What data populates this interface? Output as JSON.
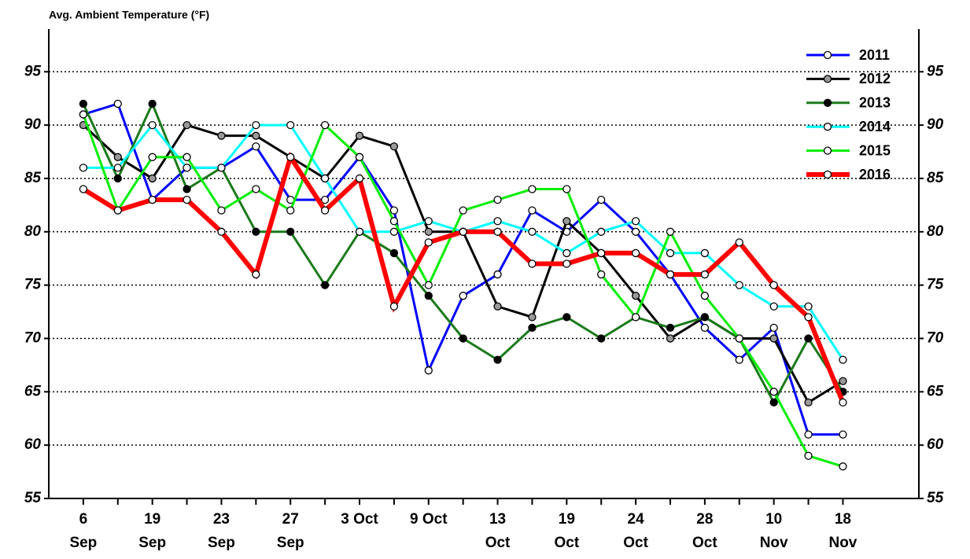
{
  "chart_data": {
    "type": "line",
    "title": "Avg. Ambient Temperature (°F)",
    "categories": [
      "6 Sep",
      null,
      "19 Sep",
      null,
      "23 Sep",
      null,
      "27 Sep",
      null,
      "3 Oct",
      null,
      "9 Oct",
      null,
      "13 Oct",
      null,
      "19 Oct",
      null,
      "24 Oct",
      null,
      "28 Oct",
      null,
      "10 Nov",
      null,
      "18 Nov"
    ],
    "series": [
      {
        "name": "2011",
        "color": "#0000ff",
        "marker_fill": "#ffffff",
        "line_width": 3,
        "values": [
          91,
          92,
          83,
          86,
          86,
          88,
          83,
          83,
          87,
          82,
          67,
          74,
          76,
          82,
          80,
          83,
          80,
          76,
          71,
          68,
          71,
          61,
          61
        ]
      },
      {
        "name": "2012",
        "color": "#000000",
        "marker_fill": "#999999",
        "line_width": 3,
        "values": [
          90,
          87,
          85,
          90,
          89,
          89,
          87,
          85,
          89,
          88,
          80,
          80,
          73,
          72,
          81,
          78,
          74,
          70,
          72,
          70,
          70,
          64,
          66
        ]
      },
      {
        "name": "2013",
        "color": "#1a7a1a",
        "marker_fill": "#000000",
        "line_width": 3,
        "values": [
          92,
          85,
          92,
          84,
          86,
          80,
          80,
          75,
          80,
          78,
          74,
          70,
          68,
          71,
          72,
          70,
          72,
          71,
          72,
          70,
          64,
          70,
          65
        ]
      },
      {
        "name": "2014",
        "color": "#00ffff",
        "marker_fill": "#ffffff",
        "line_width": 3,
        "values": [
          86,
          86,
          90,
          86,
          86,
          90,
          90,
          85,
          80,
          80,
          81,
          80,
          81,
          80,
          78,
          80,
          81,
          78,
          78,
          75,
          73,
          73,
          68
        ]
      },
      {
        "name": "2015",
        "color": "#00ee00",
        "marker_fill": "#ffffff",
        "line_width": 3,
        "values": [
          91,
          82,
          87,
          87,
          82,
          84,
          82,
          90,
          87,
          81,
          75,
          82,
          83,
          84,
          84,
          76,
          72,
          80,
          74,
          70,
          65,
          59,
          58
        ]
      },
      {
        "name": "2016",
        "color": "#ff0000",
        "marker_fill": "#ffffff",
        "line_width": 6,
        "values": [
          84,
          82,
          83,
          83,
          80,
          76,
          87,
          82,
          85,
          73,
          79,
          80,
          80,
          77,
          77,
          78,
          78,
          76,
          76,
          79,
          75,
          72,
          64
        ]
      }
    ],
    "ylim": [
      55,
      99
    ],
    "yticks": [
      55,
      60,
      65,
      70,
      75,
      80,
      85,
      90,
      95
    ],
    "y2lim": [
      55,
      99
    ],
    "y2ticks": [
      55,
      60,
      65,
      70,
      75,
      80,
      85,
      90,
      95
    ],
    "grid": true,
    "legend": "upper right"
  }
}
